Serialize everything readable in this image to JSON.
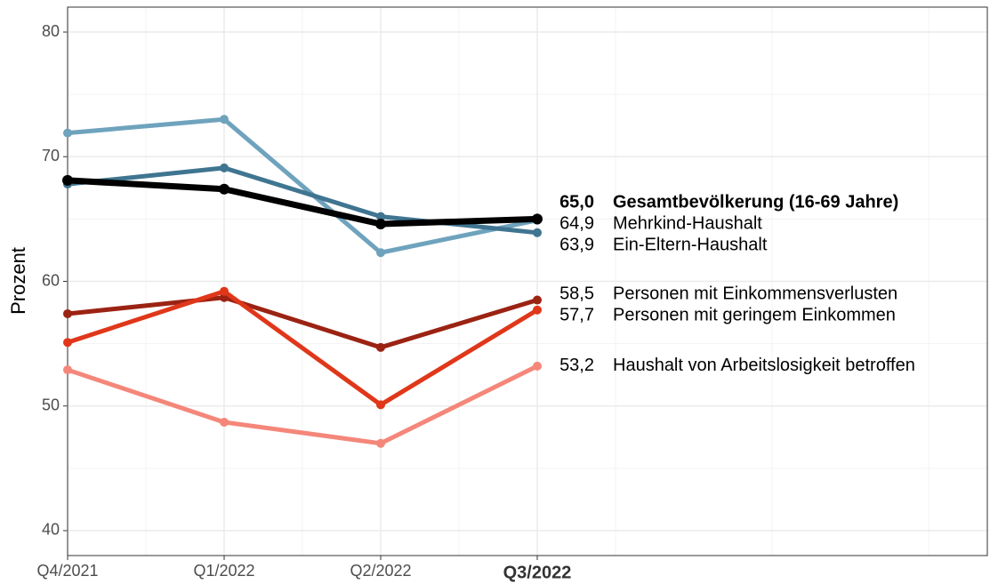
{
  "chart_data": {
    "type": "line",
    "y_label": "Prozent",
    "categories": [
      "Q4/2021",
      "Q1/2022",
      "Q2/2022",
      "Q3/2022"
    ],
    "ylim": [
      38,
      82
    ],
    "yticks": [
      40,
      50,
      60,
      70,
      80
    ],
    "grid": true,
    "series": [
      {
        "name": "Mehrkind-Haushalt",
        "color": "#6fa3bd",
        "values": [
          71.9,
          73.0,
          62.3,
          64.9
        ],
        "value_labels": [
          null,
          null,
          null,
          "64,9"
        ]
      },
      {
        "name": "Ein-Eltern-Haushalt",
        "color": "#3f7590",
        "values": [
          67.8,
          69.1,
          65.2,
          63.9
        ],
        "value_labels": [
          null,
          null,
          null,
          "63,9"
        ]
      },
      {
        "name": "Personen mit Einkommensverlusten",
        "color": "#9b2313",
        "values": [
          57.4,
          58.7,
          54.7,
          58.5
        ],
        "value_labels": [
          null,
          null,
          null,
          "58,5"
        ]
      },
      {
        "name": "Personen mit geringem Einkommen",
        "color": "#e0371a",
        "values": [
          55.1,
          59.2,
          50.1,
          57.7
        ],
        "value_labels": [
          null,
          null,
          null,
          "57,7"
        ]
      },
      {
        "name": "Haushalt von Arbeitslosigkeit betroffen",
        "color": "#f4877a",
        "values": [
          52.9,
          48.7,
          47.0,
          53.2
        ],
        "value_labels": [
          null,
          null,
          null,
          "53,2"
        ]
      },
      {
        "name": "Gesamtbevölkerung (16-69 Jahre)",
        "color": "#000000",
        "values": [
          68.1,
          67.4,
          64.6,
          65.0
        ],
        "value_labels": [
          null,
          null,
          null,
          "65,0"
        ],
        "bold": true
      }
    ]
  }
}
